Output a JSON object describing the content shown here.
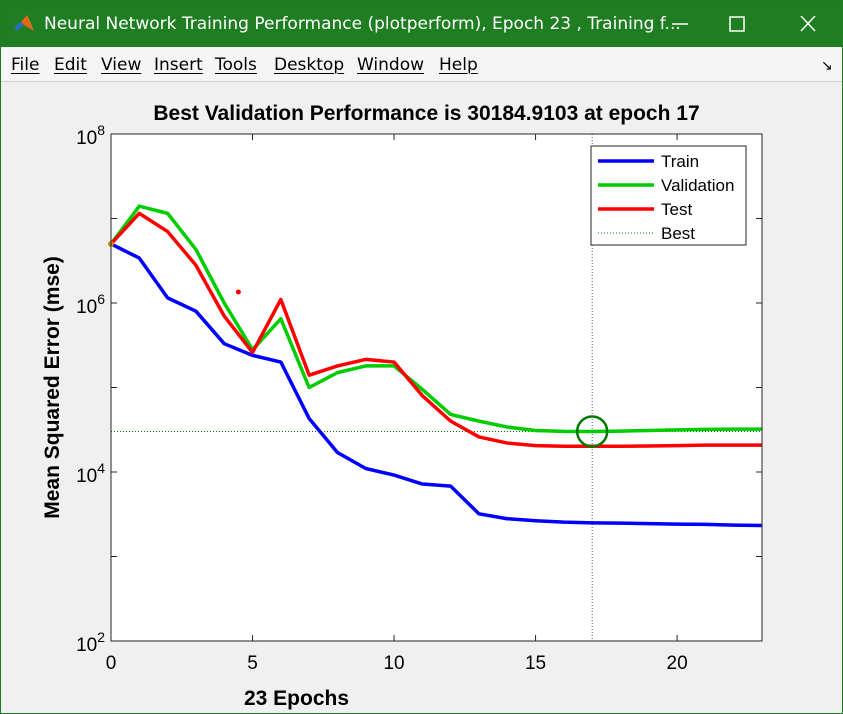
{
  "window": {
    "title": "Neural Network Training Performance (plotperform), Epoch 23 , Training f...",
    "minimize_glyph": "—",
    "maximize_glyph": "☐",
    "close_glyph": "✕"
  },
  "menu": {
    "items": [
      "File",
      "Edit",
      "View",
      "Insert",
      "Tools",
      "Desktop",
      "Window",
      "Help"
    ],
    "dock_icon": "↘"
  },
  "colors": {
    "titlebar": "#1f7e22",
    "train": "#0000ff",
    "validation": "#00cc00",
    "test": "#ff0000",
    "best": "#007700"
  },
  "chart_data": {
    "type": "line",
    "title": "Best Validation Performance is 30184.9103 at epoch 17",
    "xlabel": "23 Epochs",
    "ylabel": "Mean Squared Error  (mse)",
    "xlim": [
      0,
      23
    ],
    "ylim": [
      100,
      100000000
    ],
    "yscale": "log",
    "x_ticks": [
      0,
      5,
      10,
      15,
      20
    ],
    "y_ticks": [
      {
        "value": 100,
        "base": "10",
        "exp": "2"
      },
      {
        "value": 10000,
        "base": "10",
        "exp": "4"
      },
      {
        "value": 1000000,
        "base": "10",
        "exp": "6"
      },
      {
        "value": 100000000,
        "base": "10",
        "exp": "8"
      }
    ],
    "grid": false,
    "legend_position": "top-right",
    "x": [
      0,
      1,
      2,
      3,
      4,
      5,
      6,
      7,
      8,
      9,
      10,
      11,
      12,
      13,
      14,
      15,
      16,
      17,
      18,
      19,
      20,
      21,
      22,
      23
    ],
    "series": [
      {
        "name": "Train",
        "values": [
          5000000,
          3400000,
          1150000,
          800000,
          330000,
          240000,
          200000,
          43000,
          17000,
          11000,
          9200,
          7200,
          6800,
          3200,
          2800,
          2650,
          2550,
          2500,
          2480,
          2450,
          2420,
          2400,
          2350,
          2330
        ]
      },
      {
        "name": "Validation",
        "values": [
          5000000,
          14000000,
          11500000,
          4300000,
          1000000,
          280000,
          650000,
          100000,
          150000,
          180000,
          180000,
          95000,
          48000,
          40000,
          34000,
          31000,
          30300,
          30184.9103,
          30500,
          31000,
          31500,
          32000,
          32200,
          32200
        ]
      },
      {
        "name": "Test",
        "values": [
          5000000,
          11500000,
          7000000,
          2800000,
          700000,
          260000,
          1100000,
          140000,
          180000,
          215000,
          200000,
          80000,
          40000,
          26000,
          22000,
          20500,
          20200,
          20200,
          20200,
          20300,
          20500,
          20800,
          20800,
          20800
        ]
      }
    ],
    "best": {
      "name": "Best",
      "epoch": 17,
      "value": 30184.9103
    },
    "stray_marker": {
      "x": 4.5,
      "y": 1350000
    }
  }
}
